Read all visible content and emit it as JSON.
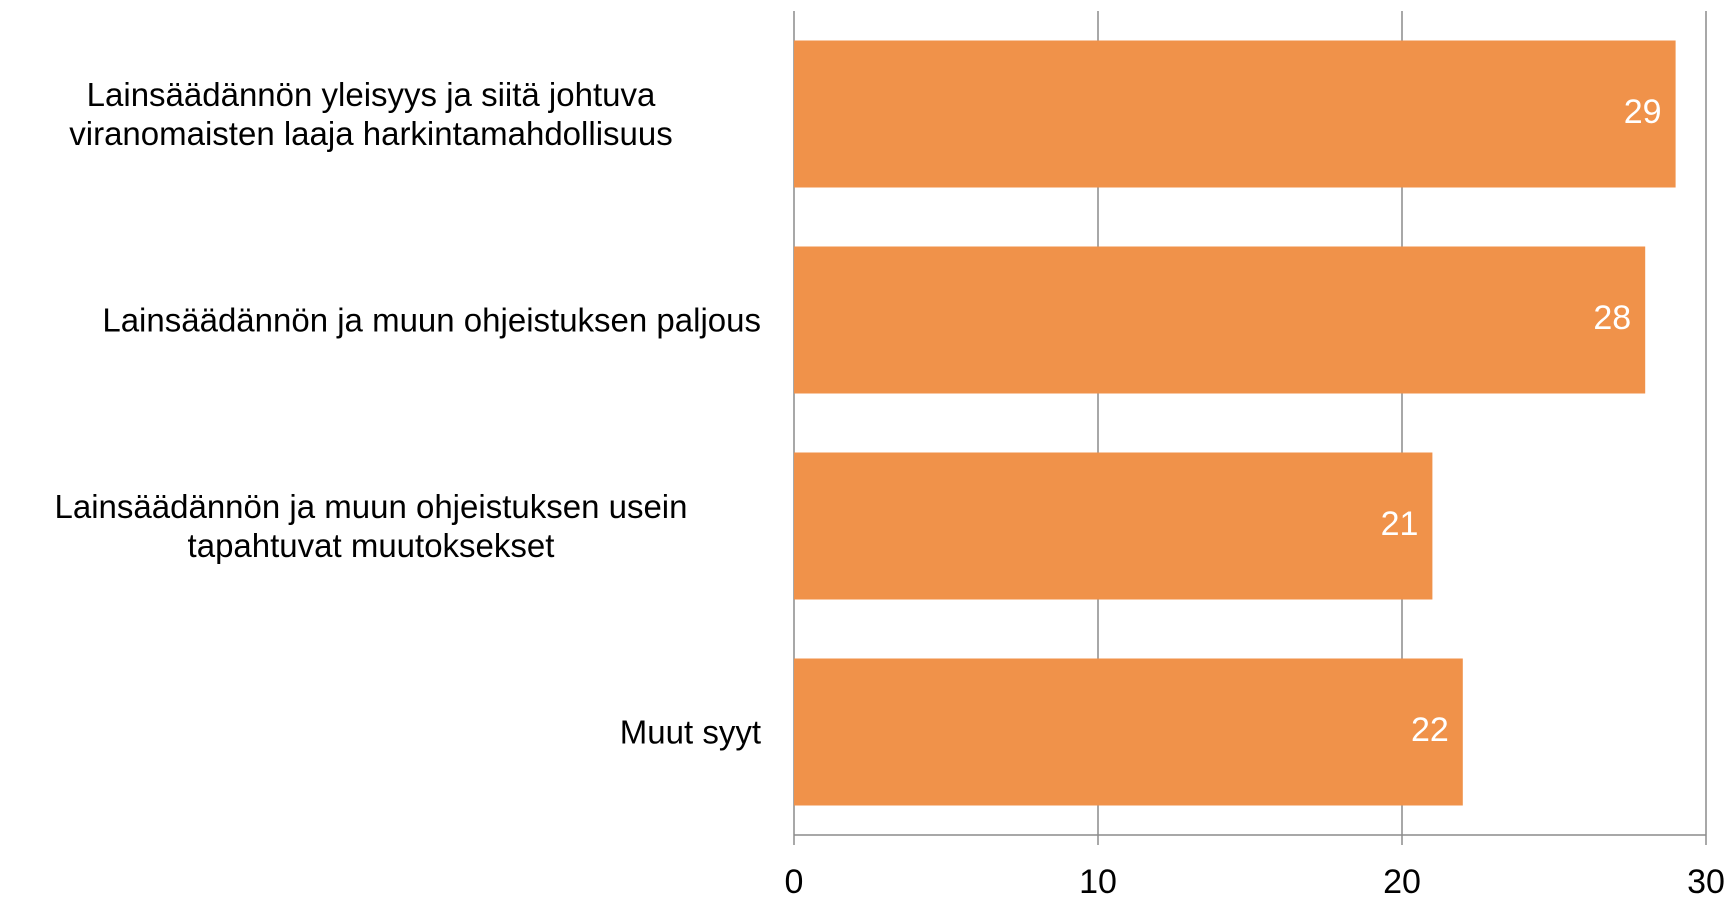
{
  "chart_data": {
    "type": "barh",
    "categories": [
      "Lainsäädännön yleisyys ja siitä johtuva viranomaisten laaja harkintamahdollisuus",
      "Lainsäädännön ja muun ohjeistuksen paljous",
      "Lainsäädännön ja muun ohjeistuksen usein tapahtuvat muutoksekset",
      "Muut syyt"
    ],
    "values": [
      29,
      28,
      21,
      22
    ],
    "color": "#f0924a",
    "xlim": [
      0,
      30
    ],
    "xticks": [
      0,
      10,
      20,
      30
    ],
    "grid": true
  }
}
